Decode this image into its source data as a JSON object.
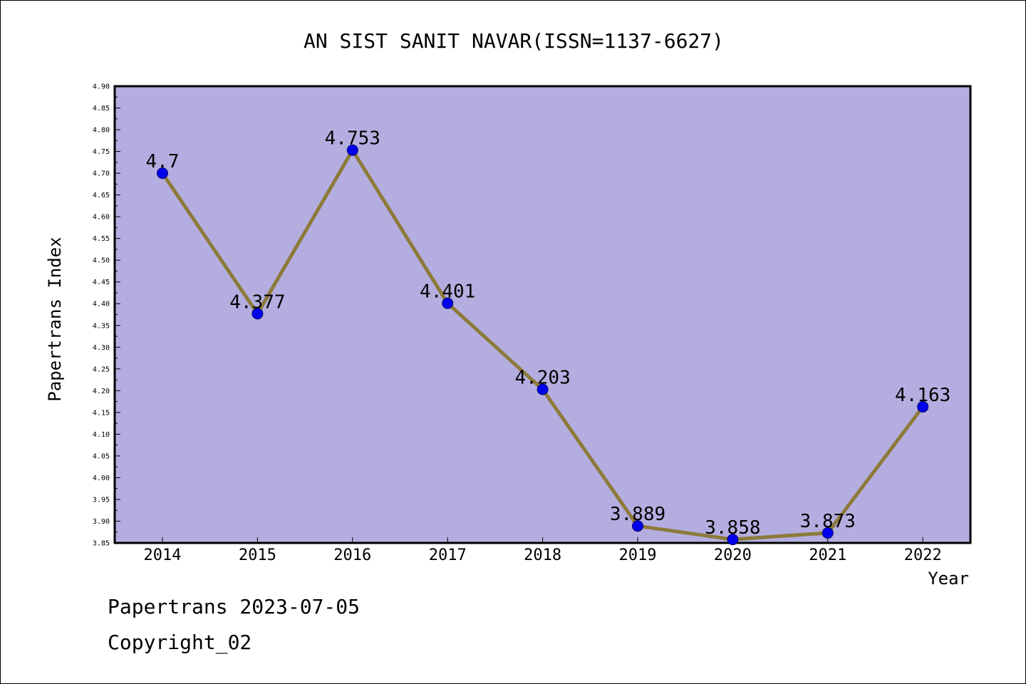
{
  "chart_data": {
    "type": "line",
    "title": "AN SIST SANIT NAVAR(ISSN=1137-6627)",
    "xlabel": "Year",
    "ylabel": "Papertrans Index",
    "categories": [
      "2014",
      "2015",
      "2016",
      "2017",
      "2018",
      "2019",
      "2020",
      "2021",
      "2022"
    ],
    "series": [
      {
        "values": [
          4.7,
          4.377,
          4.753,
          4.401,
          4.203,
          3.889,
          3.858,
          3.873,
          4.163
        ],
        "labels": [
          "4.7",
          "4.377",
          "4.753",
          "4.401",
          "4.203",
          "3.889",
          "3.858",
          "3.873",
          "4.163"
        ]
      }
    ],
    "ylim": [
      3.85,
      4.9
    ],
    "yticks": [
      "3.85",
      "3.90",
      "3.95",
      "4.00",
      "4.05",
      "4.10",
      "4.15",
      "4.20",
      "4.25",
      "4.30",
      "4.35",
      "4.40",
      "4.45",
      "4.50",
      "4.55",
      "4.60",
      "4.65",
      "4.70",
      "4.75",
      "4.80",
      "4.85",
      "4.90"
    ],
    "grid": false,
    "colors": {
      "plot_background": "#b4aee0",
      "line": "#8c7a3a",
      "marker": "#0000ee",
      "axis": "#000000"
    }
  },
  "footer": {
    "date_text": "Papertrans 2023-07-05",
    "copyright_text": "Copyright_02"
  }
}
